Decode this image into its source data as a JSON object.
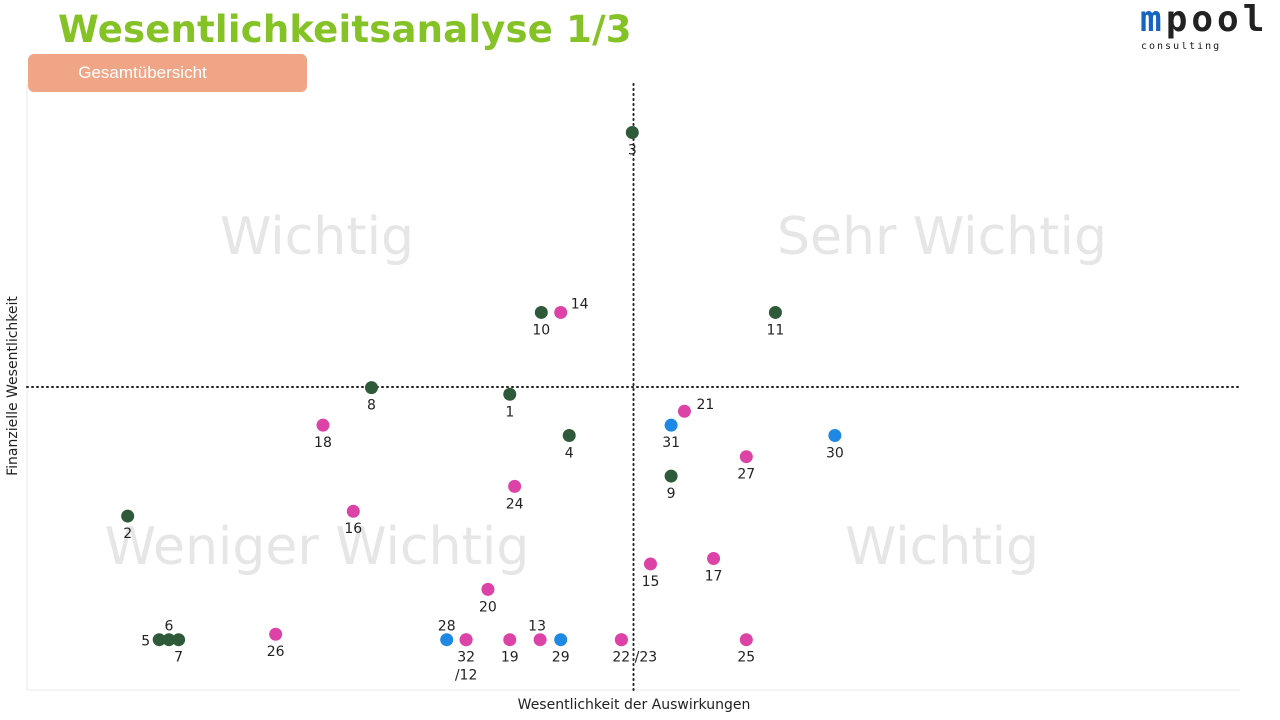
{
  "header": {
    "title": "Wesentlichkeitsanalyse 1/3",
    "logo_m": "m",
    "logo_rest": "pool",
    "logo_sub": "consulting"
  },
  "tab": {
    "label": "Gesamtübersicht"
  },
  "colors": {
    "title": "#84c225",
    "tab": "#f0a686",
    "environment": "#2f5a3a",
    "social": "#dd42a6",
    "governance": "#1e88e5",
    "logo_m": "#1565c0",
    "logo_rest": "#222222"
  },
  "chart_data": {
    "type": "scatter",
    "xlabel": "Wesentlichkeit der Auswirkungen",
    "ylabel": "Finanzielle Wesentlichkeit",
    "xlim": [
      0,
      100
    ],
    "ylim": [
      0,
      100
    ],
    "threshold_x": 50,
    "threshold_y": 50,
    "grid": false,
    "quadrants": {
      "top_left": "Wichtig",
      "top_right": "Sehr Wichtig",
      "bottom_left": "Weniger Wichtig",
      "bottom_right": "Wichtig"
    },
    "points": [
      {
        "label": "1",
        "x": 39.8,
        "y": 48.8,
        "group": "environment"
      },
      {
        "label": "2",
        "x": 8.3,
        "y": 28.7,
        "group": "environment"
      },
      {
        "label": "3",
        "x": 49.9,
        "y": 92.0,
        "group": "environment"
      },
      {
        "label": "4",
        "x": 44.7,
        "y": 42.0,
        "group": "environment"
      },
      {
        "label": "5",
        "x": 10.9,
        "y": 8.3,
        "group": "environment"
      },
      {
        "label": "6",
        "x": 11.7,
        "y": 8.3,
        "group": "environment"
      },
      {
        "label": "7",
        "x": 12.5,
        "y": 8.3,
        "group": "environment"
      },
      {
        "label": "8",
        "x": 28.4,
        "y": 49.9,
        "group": "environment"
      },
      {
        "label": "9",
        "x": 53.1,
        "y": 35.3,
        "group": "environment"
      },
      {
        "label": "10",
        "x": 42.4,
        "y": 62.3,
        "group": "environment"
      },
      {
        "label": "11",
        "x": 61.7,
        "y": 62.3,
        "group": "environment"
      },
      {
        "label": "12",
        "x": 36.2,
        "y": 8.3,
        "group": "social"
      },
      {
        "label": "13",
        "x": 42.3,
        "y": 8.3,
        "group": "social"
      },
      {
        "label": "14",
        "x": 44.0,
        "y": 62.3,
        "group": "social"
      },
      {
        "label": "15",
        "x": 51.4,
        "y": 20.8,
        "group": "social"
      },
      {
        "label": "16",
        "x": 26.9,
        "y": 29.5,
        "group": "social"
      },
      {
        "label": "17",
        "x": 56.6,
        "y": 21.7,
        "group": "social"
      },
      {
        "label": "18",
        "x": 24.4,
        "y": 43.7,
        "group": "social"
      },
      {
        "label": "19",
        "x": 39.8,
        "y": 8.3,
        "group": "social"
      },
      {
        "label": "20",
        "x": 38.0,
        "y": 16.6,
        "group": "social"
      },
      {
        "label": "21",
        "x": 54.2,
        "y": 46.0,
        "group": "social"
      },
      {
        "label": "22",
        "x": 49.0,
        "y": 8.3,
        "group": "social"
      },
      {
        "label": "23",
        "x": 49.0,
        "y": 8.3,
        "group": "social"
      },
      {
        "label": "24",
        "x": 40.2,
        "y": 33.6,
        "group": "social"
      },
      {
        "label": "25",
        "x": 59.3,
        "y": 8.3,
        "group": "social"
      },
      {
        "label": "26",
        "x": 20.5,
        "y": 9.2,
        "group": "social"
      },
      {
        "label": "27",
        "x": 59.3,
        "y": 38.5,
        "group": "social"
      },
      {
        "label": "28",
        "x": 34.6,
        "y": 8.3,
        "group": "governance"
      },
      {
        "label": "29",
        "x": 44.0,
        "y": 8.3,
        "group": "governance"
      },
      {
        "label": "30",
        "x": 66.6,
        "y": 42.0,
        "group": "governance"
      },
      {
        "label": "31",
        "x": 53.1,
        "y": 43.7,
        "group": "governance"
      },
      {
        "label": "32",
        "x": 36.2,
        "y": 8.3,
        "group": "social"
      }
    ],
    "point_labels": [
      {
        "text": "1",
        "for": "1",
        "pos": "below"
      },
      {
        "text": "2",
        "for": "2",
        "pos": "below"
      },
      {
        "text": "3",
        "for": "3",
        "pos": "below"
      },
      {
        "text": "4",
        "for": "4",
        "pos": "below"
      },
      {
        "text": "5",
        "for": "5",
        "pos": "left"
      },
      {
        "text": "6",
        "for": "6",
        "pos": "above"
      },
      {
        "text": "7",
        "for": "7",
        "pos": "below"
      },
      {
        "text": "8",
        "for": "8",
        "pos": "below"
      },
      {
        "text": "9",
        "for": "9",
        "pos": "below"
      },
      {
        "text": "10",
        "for": "10",
        "pos": "below"
      },
      {
        "text": "11",
        "for": "11",
        "pos": "below"
      },
      {
        "text": "13",
        "for": "13",
        "pos": "above-left"
      },
      {
        "text": "14",
        "for": "14",
        "pos": "above-right"
      },
      {
        "text": "15",
        "for": "15",
        "pos": "below"
      },
      {
        "text": "16",
        "for": "16",
        "pos": "below"
      },
      {
        "text": "17",
        "for": "17",
        "pos": "below"
      },
      {
        "text": "18",
        "for": "18",
        "pos": "below"
      },
      {
        "text": "19",
        "for": "19",
        "pos": "below"
      },
      {
        "text": "20",
        "for": "20",
        "pos": "below"
      },
      {
        "text": "21",
        "for": "21",
        "pos": "right"
      },
      {
        "text": "22 /23",
        "for": "22",
        "pos": "below-right"
      },
      {
        "text": "24",
        "for": "24",
        "pos": "below"
      },
      {
        "text": "25",
        "for": "25",
        "pos": "below"
      },
      {
        "text": "26",
        "for": "26",
        "pos": "below"
      },
      {
        "text": "27",
        "for": "27",
        "pos": "below"
      },
      {
        "text": "28",
        "for": "28",
        "pos": "above"
      },
      {
        "text": "29",
        "for": "29",
        "pos": "below"
      },
      {
        "text": "30",
        "for": "30",
        "pos": "below"
      },
      {
        "text": "31",
        "for": "31",
        "pos": "below"
      },
      {
        "text": "32",
        "for": "32",
        "pos": "below"
      },
      {
        "text": "/12",
        "for": "12",
        "pos": "below-2"
      }
    ]
  }
}
